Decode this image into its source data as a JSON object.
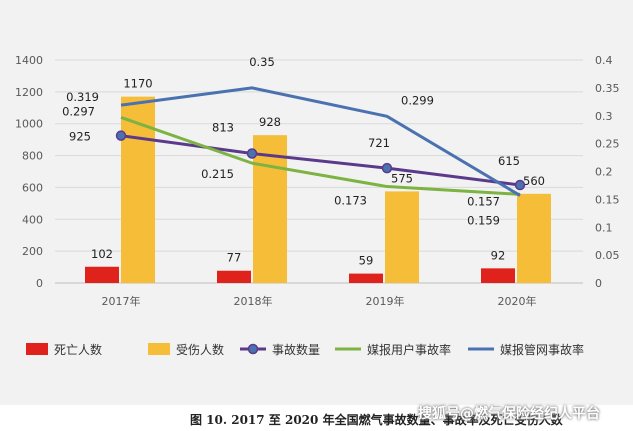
{
  "chart_data": {
    "type": "bar",
    "categories": [
      "2017年",
      "2018年",
      "2019年",
      "2020年"
    ],
    "y_left": {
      "ylim": [
        0,
        1400
      ],
      "ticks": [
        "0",
        "200",
        "400",
        "600",
        "800",
        "1000",
        "1200",
        "1400"
      ]
    },
    "y_right": {
      "ylim": [
        0,
        0.4
      ],
      "ticks": [
        "0",
        "0.05",
        "0.1",
        "0.15",
        "0.2",
        "0.25",
        "0.3",
        "0.35",
        "0.4"
      ]
    },
    "grid": true,
    "legend_position": "bottom",
    "series": [
      {
        "name": "死亡人数",
        "kind": "bar",
        "axis": "left",
        "color": "#e0221c",
        "values": [
          102,
          77,
          59,
          92
        ],
        "labels": [
          "102",
          "77",
          "59",
          "92"
        ]
      },
      {
        "name": "受伤人数",
        "kind": "bar",
        "axis": "left",
        "color": "#f5bd38",
        "values": [
          1170,
          928,
          575,
          560
        ],
        "labels": [
          "1170",
          "928",
          "575",
          "560"
        ]
      },
      {
        "name": "事故数量",
        "kind": "line",
        "axis": "left",
        "color": "#5b3a8c",
        "marker": "circle",
        "values": [
          925,
          813,
          721,
          615
        ],
        "labels": [
          "925",
          "813",
          "721",
          "615"
        ]
      },
      {
        "name": "媒报用户事故率",
        "kind": "line",
        "axis": "right",
        "color": "#7cb342",
        "values": [
          0.297,
          0.215,
          0.173,
          0.159
        ],
        "labels": [
          "0.297",
          "0.215",
          "0.173",
          "0.159"
        ]
      },
      {
        "name": "媒报管网事故率",
        "kind": "line",
        "axis": "right",
        "color": "#4a72b0",
        "values": [
          0.319,
          0.35,
          0.299,
          0.157
        ],
        "labels": [
          "0.319",
          "0.35",
          "0.299",
          "0.157"
        ]
      }
    ]
  },
  "caption": "图 10.  2017 至 2020 年全国燃气事故数量、事故率及死亡受伤人数",
  "watermark": "搜狐号@燃气保险经纪人平台"
}
